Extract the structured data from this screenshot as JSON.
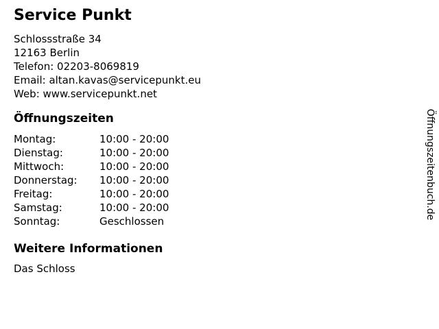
{
  "page": {
    "background": "#ffffff",
    "text_color": "#000000"
  },
  "business": {
    "name": "Service Punkt",
    "street": "Schlossstraße 34",
    "city": "12163 Berlin",
    "phone_line": "Telefon: 02203-8069819",
    "email_line": "Email: altan.kavas@servicepunkt.eu",
    "web_line": "Web: www.servicepunkt.net"
  },
  "hours_section": {
    "heading": "Öffnungszeiten",
    "rows": [
      {
        "day": "Montag:",
        "time": "10:00 - 20:00"
      },
      {
        "day": "Dienstag:",
        "time": "10:00 - 20:00"
      },
      {
        "day": "Mittwoch:",
        "time": "10:00 - 20:00"
      },
      {
        "day": "Donnerstag:",
        "time": "10:00 - 20:00"
      },
      {
        "day": "Freitag:",
        "time": "10:00 - 20:00"
      },
      {
        "day": "Samstag:",
        "time": "10:00 - 20:00"
      },
      {
        "day": "Sonntag:",
        "time": "Geschlossen"
      }
    ]
  },
  "info_section": {
    "heading": "Weitere Informationen",
    "text": "Das Schloss"
  },
  "branding": {
    "label": "Öffnungszeitenbuch.de"
  }
}
